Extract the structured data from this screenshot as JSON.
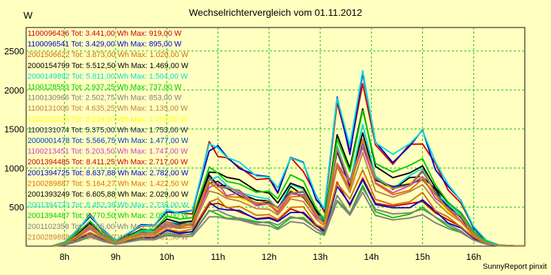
{
  "app": {
    "credit": "SunnyReport pinxit"
  },
  "chart_data": {
    "type": "line",
    "title": "Wechselrichtervergleich vom 01.11.2012",
    "ylabel": "W",
    "xlabel": "",
    "xlim": [
      7.25,
      17
    ],
    "ylim": [
      0,
      2800
    ],
    "grid": true,
    "x_ticks": [
      {
        "value": 8,
        "label": "8h"
      },
      {
        "value": 9,
        "label": "9h"
      },
      {
        "value": 10,
        "label": "10h"
      },
      {
        "value": 11,
        "label": "11h"
      },
      {
        "value": 12,
        "label": "12h"
      },
      {
        "value": 13,
        "label": "13h"
      },
      {
        "value": 14,
        "label": "14h"
      },
      {
        "value": 15,
        "label": "15h"
      },
      {
        "value": 16,
        "label": "16h"
      }
    ],
    "y_ticks": [
      500,
      1000,
      1500,
      2000,
      2500
    ],
    "x": [
      7.75,
      8,
      8.25,
      8.5,
      8.75,
      9,
      9.25,
      9.5,
      9.75,
      10,
      10.25,
      10.5,
      10.83,
      11,
      11.17,
      11.42,
      11.75,
      12,
      12.17,
      12.42,
      12.67,
      12.92,
      13.08,
      13.33,
      13.58,
      13.83,
      14.08,
      14.42,
      14.75,
      15,
      15.25,
      15.5,
      15.75,
      16,
      16.25,
      16.5,
      17
    ],
    "series": [
      {
        "legend": "1100096436 Tot: 3.441,00 Wh Max: 919,00 W",
        "color": "#cc0000",
        "scale": 0.34,
        "noise": 1
      },
      {
        "legend": "1100096541 Tot: 3.429,00 Wh Max: 895,00 W",
        "color": "#0000cc",
        "scale": 0.33,
        "noise": 2
      },
      {
        "legend": "2001506622 Tot: 3.873,00 Wh Max: 1.020,00 W",
        "color": "#d07000",
        "scale": 0.37,
        "noise": 3
      },
      {
        "legend": "2000154799 Tot: 5.512,50 Wh Max: 1.469,00 W",
        "color": "#000000",
        "scale": 0.53,
        "noise": 4
      },
      {
        "legend": "2000149892 Tot: 5.811,00 Wh Max: 1.504,00 W",
        "color": "#00dddd",
        "scale": 0.55,
        "noise": 5
      },
      {
        "legend": "1100128553 Tot: 2.937,25 Wh Max: 737,00 W",
        "color": "#00cc00",
        "scale": 0.27,
        "noise": 6
      },
      {
        "legend": "1100130966 Tot: 2.502,75 Wh Max: 853,00 W",
        "color": "#808080",
        "scale": 0.24,
        "noise": 7
      },
      {
        "legend": "1100131006 Tot: 4.635,25 Wh Max: 1.135,00 W",
        "color": "#c08040",
        "scale": 0.43,
        "noise": 8
      },
      {
        "legend": "1100131025 Tot: 5.234,00 Wh Max: 1.709,00 W",
        "color": "#ffff00",
        "scale": 0.49,
        "noise": 9
      },
      {
        "legend": "1100131074 Tot: 5.375,00 Wh Max: 1.753,00 W",
        "color": "#202050",
        "scale": 0.51,
        "noise": 10
      },
      {
        "legend": "2000001478 Tot: 5.566,75 Wh Max: 1.477,00 W",
        "color": "#0040c0",
        "scale": 0.52,
        "noise": 11
      },
      {
        "legend": "1100213451 Tot: 5.203,50 Wh Max: 1.747,00 W",
        "color": "#cc40cc",
        "scale": 0.49,
        "noise": 12
      },
      {
        "legend": "2001394485 Tot: 8.411,25 Wh Max: 2.717,00 W",
        "color": "#cc0000",
        "scale": 0.78,
        "noise": 13
      },
      {
        "legend": "2001394725 Tot: 8.637,88 Wh Max: 2.782,00 W",
        "color": "#0000cc",
        "scale": 0.8,
        "noise": 14
      },
      {
        "legend": "2100289887 Tot: 5.164,27 Wh Max: 1.422,50 W",
        "color": "#e07000",
        "scale": 0.48,
        "noise": 15
      },
      {
        "legend": "2001393249 Tot: 6.605,88 Wh Max: 2.029,00 W",
        "color": "#000000",
        "scale": 0.61,
        "noise": 16
      },
      {
        "legend": "2001394723 Tot: 8.452,38 Wh Max: 2.738,00 W",
        "color": "#00dddd",
        "scale": 0.79,
        "noise": 17
      },
      {
        "legend": "2001394487 Tot: 6.770,50 Wh Max: 2.050,00 W",
        "color": "#00cc00",
        "scale": 0.63,
        "noise": 18
      },
      {
        "legend": "2001102358 Tot: 2.995,00 Wh Max: 893,00 W",
        "color": "#808080",
        "scale": 0.28,
        "noise": 19
      },
      {
        "legend": "2100289888 Tot: 5.564,00 Wh Max: 1.781,50 W",
        "color": "#c08040",
        "scale": 0.52,
        "noise": 20
      }
    ],
    "base_shape": [
      0,
      60,
      260,
      500,
      250,
      90,
      210,
      330,
      330,
      580,
      520,
      560,
      1620,
      1550,
      1400,
      1320,
      1100,
      1080,
      910,
      1380,
      1300,
      790,
      580,
      2300,
      1560,
      2720,
      1600,
      1420,
      1580,
      1780,
      1300,
      950,
      700,
      300,
      90,
      15,
      0
    ]
  }
}
